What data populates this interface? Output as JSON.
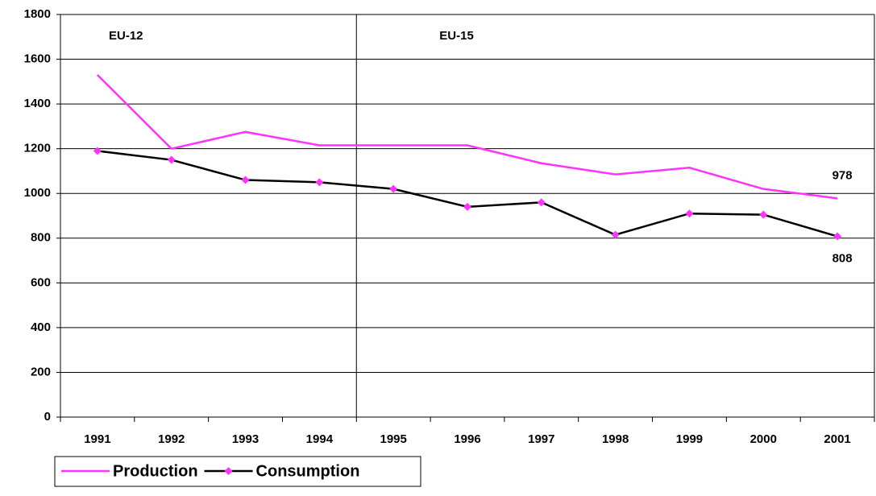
{
  "chart_data": {
    "type": "line",
    "categories": [
      "1991",
      "1992",
      "1993",
      "1994",
      "1995",
      "1996",
      "1997",
      "1998",
      "1999",
      "2000",
      "2001"
    ],
    "series": [
      {
        "name": "Production",
        "color": "#ff33ff",
        "values": [
          1530,
          1200,
          1275,
          1215,
          1215,
          1215,
          1135,
          1085,
          1115,
          1020,
          978
        ]
      },
      {
        "name": "Consumption",
        "color": "#000000",
        "marker_color": "#ff33ff",
        "values": [
          1190,
          1150,
          1060,
          1050,
          1020,
          940,
          960,
          815,
          910,
          905,
          808
        ]
      }
    ],
    "annotations": [
      "EU-12",
      "EU-15"
    ],
    "ylim": [
      0,
      1800
    ],
    "yticks": [
      0,
      200,
      400,
      600,
      800,
      1000,
      1200,
      1400,
      1600,
      1800
    ],
    "grid": true,
    "legend": "bottom"
  }
}
